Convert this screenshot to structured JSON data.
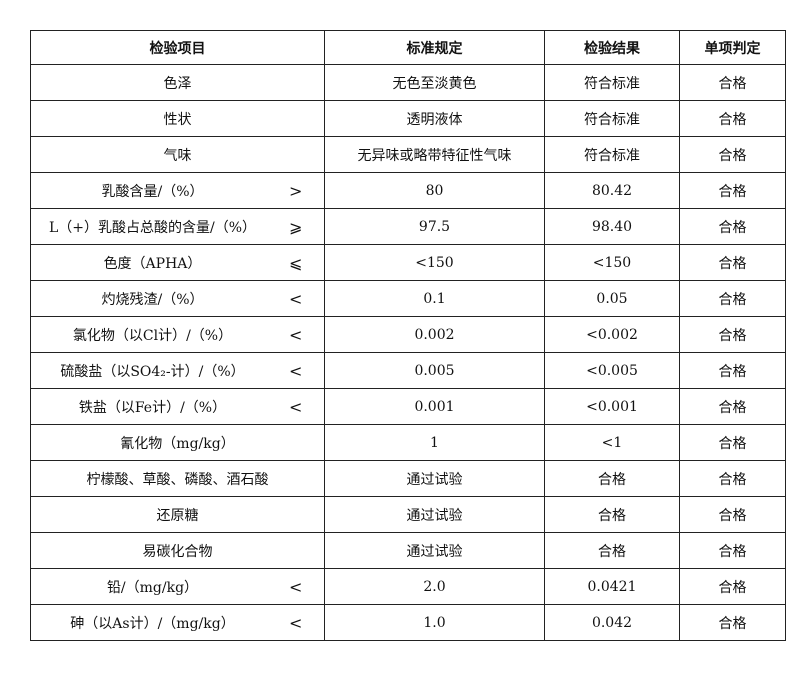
{
  "headers": [
    "检验项目",
    "标准规定",
    "检验结果",
    "单项判定"
  ],
  "rows": [
    {
      "item": "色泽",
      "op": "",
      "standard": "无色至淡黄色",
      "result": "符合标准",
      "verdict": "合格"
    },
    {
      "item": "性状",
      "op": "",
      "standard": "透明液体",
      "result": "符合标准",
      "verdict": "合格"
    },
    {
      "item": "气味",
      "op": "",
      "standard": "无异味或略带特征性气味",
      "result": "符合标准",
      "verdict": "合格"
    },
    {
      "item": "乳酸含量/（%）",
      "op": ">",
      "standard": "80",
      "result": "80.42",
      "verdict": "合格"
    },
    {
      "item": "L（+）乳酸占总酸的含量/（%）",
      "op": "⩾",
      "standard": "97.5",
      "result": "98.40",
      "verdict": "合格"
    },
    {
      "item": "色度（APHA）",
      "op": "⩽",
      "standard": "<150",
      "result": "<150",
      "verdict": "合格"
    },
    {
      "item": "灼烧残渣/（%）",
      "op": "<",
      "standard": "0.1",
      "result": "0.05",
      "verdict": "合格"
    },
    {
      "item": "氯化物（以Cl计）/（%）",
      "op": "<",
      "standard": "0.002",
      "result": "<0.002",
      "verdict": "合格"
    },
    {
      "item": "硫酸盐（以SO4₂-计）/（%）",
      "op": "<",
      "standard": "0.005",
      "result": "<0.005",
      "verdict": "合格"
    },
    {
      "item": "铁盐（以Fe计）/（%）",
      "op": "<",
      "standard": "0.001",
      "result": "<0.001",
      "verdict": "合格"
    },
    {
      "item": "氰化物（mg/kg）",
      "op": "",
      "standard": "1",
      "result": "<1",
      "verdict": "合格"
    },
    {
      "item": "柠檬酸、草酸、磷酸、酒石酸",
      "op": "",
      "standard": "通过试验",
      "result": "合格",
      "verdict": "合格"
    },
    {
      "item": "还原糖",
      "op": "",
      "standard": "通过试验",
      "result": "合格",
      "verdict": "合格"
    },
    {
      "item": "易碳化合物",
      "op": "",
      "standard": "通过试验",
      "result": "合格",
      "verdict": "合格"
    },
    {
      "item": "铅/（mg/kg）",
      "op": "<",
      "standard": "2.0",
      "result": "0.0421",
      "verdict": "合格"
    },
    {
      "item": "砷（以As计）/（mg/kg）",
      "op": "<",
      "standard": "1.0",
      "result": "0.042",
      "verdict": "合格"
    }
  ]
}
